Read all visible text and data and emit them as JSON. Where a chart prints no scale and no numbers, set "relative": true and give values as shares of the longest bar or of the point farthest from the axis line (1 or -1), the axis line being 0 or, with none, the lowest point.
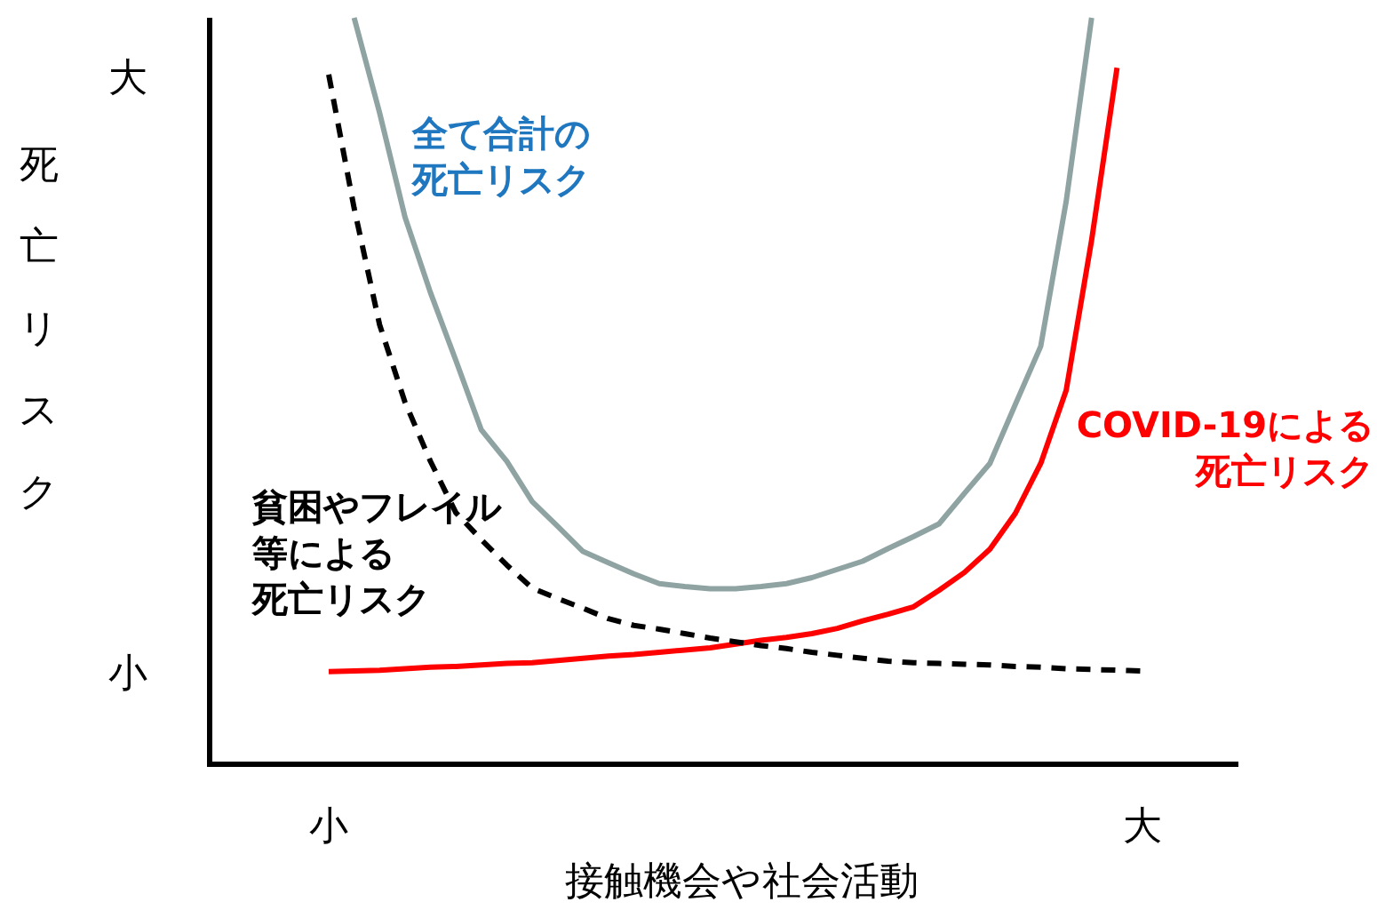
{
  "chart_data": {
    "type": "line",
    "xlabel": "接触機会や社会活動",
    "relative": true,
    "annotations": [
      "大",
      "死亡リスク",
      "小"
    ],
    "marker": "none",
    "categories": [
      "小",
      null,
      null,
      null,
      null,
      null,
      null,
      null,
      null,
      null,
      null,
      null,
      null,
      null,
      null,
      null,
      null,
      null,
      null,
      null,
      null,
      null,
      null,
      null,
      null,
      null,
      null,
      null,
      null,
      null,
      null,
      null,
      "大"
    ],
    "series": [
      {
        "name": "全て合計の死亡リスク",
        "color": "#8fa3a3",
        "line_style": "solid",
        "values": [
          null,
          1.0,
          0.873,
          0.733,
          0.632,
          0.541,
          0.448,
          0.406,
          0.352,
          0.319,
          0.285,
          0.27,
          0.255,
          0.242,
          0.238,
          0.235,
          0.235,
          0.238,
          0.242,
          0.25,
          0.261,
          0.272,
          0.289,
          0.305,
          0.322,
          0.363,
          0.403,
          0.482,
          0.56,
          0.754,
          1.0,
          null,
          null
        ]
      },
      {
        "name": "COVID-19による死亡リスク",
        "color": "#ff0000",
        "line_style": "solid",
        "values": [
          0.124,
          0.125,
          0.126,
          0.128,
          0.13,
          0.131,
          0.133,
          0.135,
          0.136,
          0.139,
          0.142,
          0.145,
          0.147,
          0.15,
          0.153,
          0.156,
          0.161,
          0.166,
          0.17,
          0.175,
          0.182,
          0.192,
          0.201,
          0.211,
          0.233,
          0.257,
          0.288,
          0.336,
          0.403,
          0.501,
          0.702,
          0.933,
          null
        ]
      },
      {
        "name": "貧困やフレイル等による死亡リスク",
        "color": "#000000",
        "line_style": "dashed",
        "values": [
          0.924,
          0.745,
          0.589,
          0.485,
          0.406,
          0.337,
          0.301,
          0.267,
          0.236,
          0.222,
          0.209,
          0.195,
          0.186,
          0.181,
          0.175,
          0.169,
          0.164,
          0.159,
          0.155,
          0.15,
          0.146,
          0.142,
          0.138,
          0.136,
          0.135,
          0.134,
          0.133,
          0.131,
          0.13,
          0.128,
          0.127,
          0.126,
          0.125
        ]
      }
    ]
  }
}
